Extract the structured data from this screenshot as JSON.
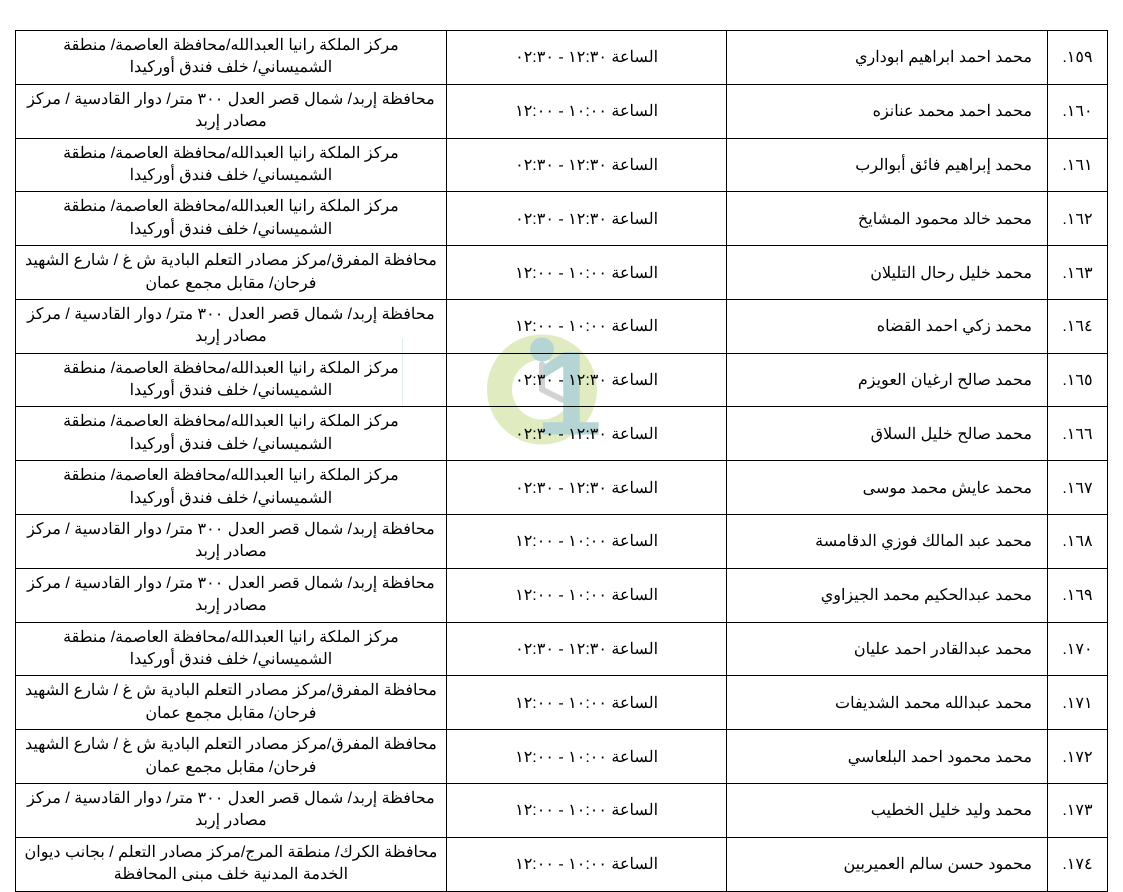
{
  "table": {
    "rows": [
      {
        "index": ".١٥٩",
        "name": "محمد احمد ابراهيم ابوداري",
        "time": "الساعة ١٢:٣٠ - ٠٢:٣٠",
        "location": "مركز الملكة رانيا العبدالله/محافظة العاصمة/ منطقة الشميساني/ خلف فندق أوركيدا"
      },
      {
        "index": ".١٦٠",
        "name": "محمد احمد محمد عنانزه",
        "time": "الساعة ١٠:٠٠ - ١٢:٠٠",
        "location": "محافظة إربد/ شمال قصر العدل ٣٠٠ متر/ دوار القادسية / مركز مصادر إربد"
      },
      {
        "index": ".١٦١",
        "name": "محمد إبراهيم فائق أبوالرب",
        "time": "الساعة ١٢:٣٠ - ٠٢:٣٠",
        "location": "مركز الملكة رانيا العبدالله/محافظة العاصمة/ منطقة الشميساني/ خلف فندق أوركيدا"
      },
      {
        "index": ".١٦٢",
        "name": "محمد خالد محمود المشايخ",
        "time": "الساعة ١٢:٣٠ - ٠٢:٣٠",
        "location": "مركز الملكة رانيا العبدالله/محافظة العاصمة/ منطقة الشميساني/ خلف فندق أوركيدا"
      },
      {
        "index": ".١٦٣",
        "name": "محمد خليل رحال التليلان",
        "time": "الساعة ١٠:٠٠ - ١٢:٠٠",
        "location": "محافظة المفرق/مركز مصادر التعلم البادية ش غ / شارع الشهيد فرحان/ مقابل مجمع عمان"
      },
      {
        "index": ".١٦٤",
        "name": "محمد زكي احمد القضاه",
        "time": "الساعة ١٠:٠٠ - ١٢:٠٠",
        "location": "محافظة إربد/ شمال قصر العدل ٣٠٠ متر/ دوار القادسية / مركز مصادر إربد"
      },
      {
        "index": ".١٦٥",
        "name": "محمد صالح ارغيان العويزم",
        "time": "الساعة ١٢:٣٠ - ٠٢:٣٠",
        "location": "مركز الملكة رانيا العبدالله/محافظة العاصمة/ منطقة الشميساني/ خلف فندق أوركيدا"
      },
      {
        "index": ".١٦٦",
        "name": "محمد صالح خليل السلاق",
        "time": "الساعة ١٢:٣٠ - ٠٢:٣٠",
        "location": "مركز الملكة رانيا العبدالله/محافظة العاصمة/ منطقة الشميساني/ خلف فندق أوركيدا"
      },
      {
        "index": ".١٦٧",
        "name": "محمد عايش محمد موسى",
        "time": "الساعة ١٢:٣٠ - ٠٢:٣٠",
        "location": "مركز الملكة رانيا العبدالله/محافظة العاصمة/ منطقة الشميساني/ خلف فندق أوركيدا"
      },
      {
        "index": ".١٦٨",
        "name": "محمد عبد المالك فوزي الدقامسة",
        "time": "الساعة ١٠:٠٠ - ١٢:٠٠",
        "location": "محافظة إربد/ شمال قصر العدل ٣٠٠ متر/ دوار القادسية / مركز مصادر إربد"
      },
      {
        "index": ".١٦٩",
        "name": "محمد عبدالحكيم محمد الجيزاوي",
        "time": "الساعة ١٠:٠٠ - ١٢:٠٠",
        "location": "محافظة إربد/ شمال قصر العدل ٣٠٠ متر/ دوار القادسية / مركز مصادر إربد"
      },
      {
        "index": ".١٧٠",
        "name": "محمد عبدالقادر احمد عليان",
        "time": "الساعة ١٢:٣٠ - ٠٢:٣٠",
        "location": "مركز الملكة رانيا العبدالله/محافظة العاصمة/ منطقة الشميساني/ خلف فندق أوركيدا"
      },
      {
        "index": ".١٧١",
        "name": "محمد عبدالله محمد الشديفات",
        "time": "الساعة ١٠:٠٠ - ١٢:٠٠",
        "location": "محافظة المفرق/مركز مصادر التعلم البادية ش غ / شارع الشهيد فرحان/ مقابل مجمع عمان"
      },
      {
        "index": ".١٧٢",
        "name": "محمد محمود احمد البلعاسي",
        "time": "الساعة ١٠:٠٠ - ١٢:٠٠",
        "location": "محافظة المفرق/مركز مصادر التعلم البادية ش غ / شارع الشهيد فرحان/ مقابل مجمع عمان"
      },
      {
        "index": ".١٧٣",
        "name": "محمد وليد خليل الخطيب",
        "time": "الساعة ١٠:٠٠ - ١٢:٠٠",
        "location": "محافظة إربد/ شمال قصر العدل ٣٠٠ متر/ دوار القادسية / مركز مصادر إربد"
      },
      {
        "index": ".١٧٤",
        "name": "محمود حسن سالم العميربين",
        "time": "الساعة ١٠:٠٠ - ١٢:٠٠",
        "location": "محافظة الكرك/ منطقة المرج/مركز مصادر التعلم / بجانب ديوان الخدمة المدنية خلف مبنى المحافظة"
      }
    ]
  },
  "styling": {
    "background_color": "#ffffff",
    "border_color": "#000000",
    "text_color": "#000000",
    "font_size": 16,
    "watermark_colors": {
      "teal": "#2d8a8a",
      "green": "#a8c84a",
      "gray": "#808080"
    }
  }
}
